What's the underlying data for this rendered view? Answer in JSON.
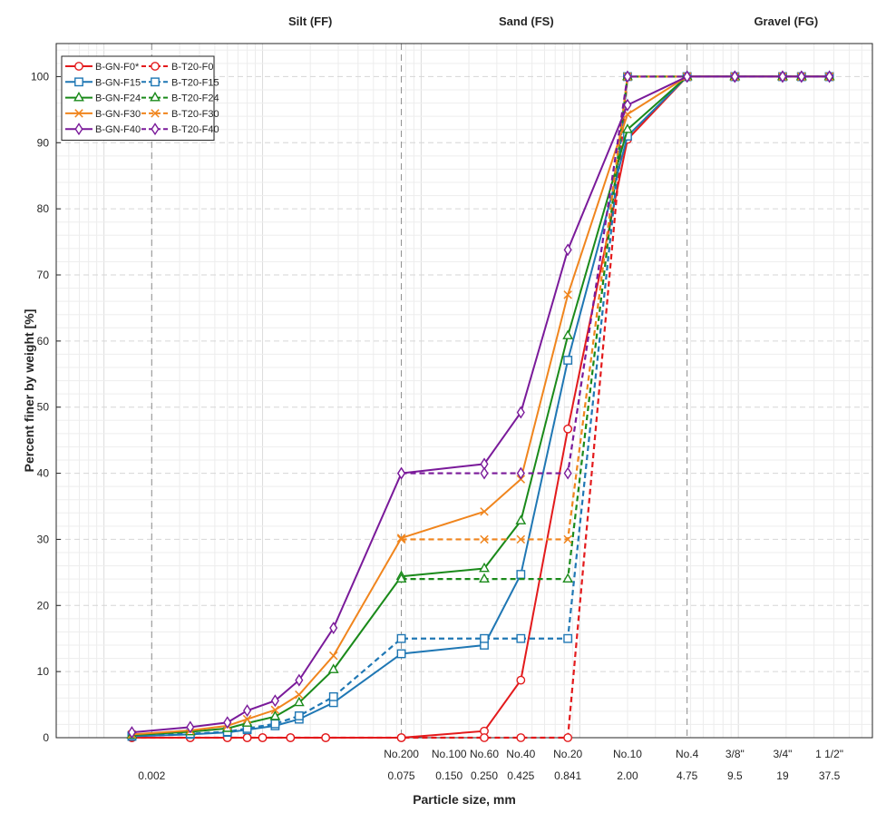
{
  "chart_data": {
    "type": "line",
    "xscale": "log",
    "xlabel": "Particle size, mm",
    "ylabel": "Percent finer by weight [%]",
    "xlim": [
      0.0005,
      70
    ],
    "ylim": [
      0,
      105
    ],
    "grid": true,
    "legend_position": "top-left",
    "yticks": [
      0,
      10,
      20,
      30,
      40,
      50,
      60,
      70,
      80,
      90,
      100
    ],
    "zones": [
      {
        "label": "Silt (FF)",
        "x": 0.02
      },
      {
        "label": "Sand (FS)",
        "x": 0.46
      },
      {
        "label": "Gravel (FG)",
        "x": 20
      }
    ],
    "zone_boundaries": [
      0.002,
      0.075,
      4.75
    ],
    "x_ticks_top": [
      {
        "x": 0.075,
        "label": "No.200"
      },
      {
        "x": 0.15,
        "label": "No.100"
      },
      {
        "x": 0.25,
        "label": "No.60"
      },
      {
        "x": 0.425,
        "label": "No.40"
      },
      {
        "x": 0.841,
        "label": "No.20"
      },
      {
        "x": 2.0,
        "label": "No.10"
      },
      {
        "x": 4.75,
        "label": "No.4"
      },
      {
        "x": 9.5,
        "label": "3/8\""
      },
      {
        "x": 19,
        "label": "3/4\""
      },
      {
        "x": 37.5,
        "label": "1 1/2\""
      }
    ],
    "x_ticks_bottom": [
      {
        "x": 0.002,
        "label": "0.002"
      },
      {
        "x": 0.075,
        "label": "0.075"
      },
      {
        "x": 0.15,
        "label": "0.150"
      },
      {
        "x": 0.25,
        "label": "0.250"
      },
      {
        "x": 0.425,
        "label": "0.425"
      },
      {
        "x": 0.841,
        "label": "0.841"
      },
      {
        "x": 2.0,
        "label": "2.00"
      },
      {
        "x": 4.75,
        "label": "4.75"
      },
      {
        "x": 9.5,
        "label": "9.5"
      },
      {
        "x": 19,
        "label": "19"
      },
      {
        "x": 37.5,
        "label": "37.5"
      }
    ],
    "series": [
      {
        "name": "B-GN-F0*",
        "color": "#e31a1c",
        "dash": "solid",
        "marker": "circle",
        "x": [
          0.0015,
          0.0035,
          0.006,
          0.008,
          0.01,
          0.015,
          0.025,
          0.075,
          0.25,
          0.425,
          0.841,
          2.0,
          4.75,
          9.5,
          19,
          25,
          37.5
        ],
        "y": [
          0,
          0,
          0,
          0,
          0,
          0,
          0,
          0,
          1,
          8.7,
          46.7,
          90.5,
          100,
          100,
          100,
          100,
          100
        ]
      },
      {
        "name": "B-T20-F0",
        "color": "#e31a1c",
        "dash": "dashed",
        "marker": "circle",
        "x": [
          0.0015,
          0.0035,
          0.006,
          0.008,
          0.01,
          0.015,
          0.025,
          0.075,
          0.25,
          0.425,
          0.841,
          2.0,
          4.75,
          9.5,
          19,
          25,
          37.5
        ],
        "y": [
          0,
          0,
          0,
          0,
          0,
          0,
          0,
          0,
          0,
          0,
          0,
          100,
          100,
          100,
          100,
          100,
          100
        ]
      },
      {
        "name": "B-GN-F15",
        "color": "#1f77b4",
        "dash": "solid",
        "marker": "square",
        "x": [
          0.0015,
          0.0035,
          0.006,
          0.008,
          0.012,
          0.017,
          0.028,
          0.075,
          0.25,
          0.425,
          0.841,
          2.0,
          4.75,
          9.5,
          19,
          25,
          37.5
        ],
        "y": [
          0.2,
          0.5,
          0.8,
          1.2,
          1.8,
          2.8,
          5.3,
          12.7,
          14,
          24.7,
          57.1,
          91,
          100,
          100,
          100,
          100,
          100
        ]
      },
      {
        "name": "B-T20-F15",
        "color": "#1f77b4",
        "dash": "dashed",
        "marker": "square",
        "x": [
          0.0015,
          0.0035,
          0.006,
          0.008,
          0.012,
          0.017,
          0.028,
          0.075,
          0.25,
          0.425,
          0.841,
          2.0,
          4.75,
          9.5,
          19,
          25,
          37.5
        ],
        "y": [
          0.3,
          0.6,
          0.9,
          1.4,
          2.1,
          3.3,
          6.2,
          15,
          15,
          15,
          15,
          100,
          100,
          100,
          100,
          100,
          100
        ]
      },
      {
        "name": "B-GN-F24",
        "color": "#1a8a1a",
        "dash": "solid",
        "marker": "triangle",
        "x": [
          0.0015,
          0.0035,
          0.006,
          0.008,
          0.012,
          0.017,
          0.028,
          0.075,
          0.25,
          0.425,
          0.841,
          2.0,
          4.75,
          9.5,
          19,
          25,
          37.5
        ],
        "y": [
          0.4,
          0.9,
          1.4,
          2.2,
          3.2,
          5.3,
          10.3,
          24.4,
          25.6,
          32.8,
          60.8,
          92,
          100,
          100,
          100,
          100,
          100
        ]
      },
      {
        "name": "B-T20-F24",
        "color": "#1a8a1a",
        "dash": "dashed",
        "marker": "triangle",
        "x": [
          0.075,
          0.25,
          0.841,
          2.0,
          4.75,
          9.5,
          19,
          25,
          37.5
        ],
        "y": [
          24,
          24,
          24,
          100,
          100,
          100,
          100,
          100,
          100
        ]
      },
      {
        "name": "B-GN-F30",
        "color": "#f0851d",
        "dash": "solid",
        "marker": "x",
        "x": [
          0.0015,
          0.0035,
          0.006,
          0.008,
          0.012,
          0.017,
          0.028,
          0.075,
          0.25,
          0.425,
          0.841,
          2.0,
          4.75,
          9.5,
          19,
          25,
          37.5
        ],
        "y": [
          0.5,
          1.1,
          1.8,
          2.8,
          4.2,
          6.5,
          12.4,
          30.2,
          34.2,
          39.1,
          67,
          94.3,
          100,
          100,
          100,
          100,
          100
        ]
      },
      {
        "name": "B-T20-F30",
        "color": "#f0851d",
        "dash": "dashed",
        "marker": "x",
        "x": [
          0.075,
          0.25,
          0.425,
          0.841,
          2.0,
          4.75,
          9.5,
          19,
          25,
          37.5
        ],
        "y": [
          30,
          30,
          30,
          30,
          100,
          100,
          100,
          100,
          100,
          100
        ]
      },
      {
        "name": "B-GN-F40",
        "color": "#7a1a9a",
        "dash": "solid",
        "marker": "diamond",
        "x": [
          0.0015,
          0.0035,
          0.006,
          0.008,
          0.012,
          0.017,
          0.028,
          0.075,
          0.25,
          0.425,
          0.841,
          2.0,
          4.75,
          9.5,
          19,
          25,
          37.5
        ],
        "y": [
          0.8,
          1.6,
          2.3,
          4.1,
          5.6,
          8.7,
          16.6,
          40,
          41.4,
          49.2,
          73.8,
          95.7,
          100,
          100,
          100,
          100,
          100
        ]
      },
      {
        "name": "B-T20-F40",
        "color": "#7a1a9a",
        "dash": "dashed",
        "marker": "diamond",
        "x": [
          0.075,
          0.25,
          0.425,
          0.841,
          2.0,
          4.75,
          9.5,
          19,
          25,
          37.5
        ],
        "y": [
          40,
          40,
          40,
          40,
          100,
          100,
          100,
          100,
          100,
          100
        ]
      }
    ],
    "legend_order": [
      "B-GN-F0*",
      "B-T20-F0",
      "B-GN-F15",
      "B-T20-F15",
      "B-GN-F24",
      "B-T20-F24",
      "B-GN-F30",
      "B-T20-F30",
      "B-GN-F40",
      "B-T20-F40"
    ]
  }
}
